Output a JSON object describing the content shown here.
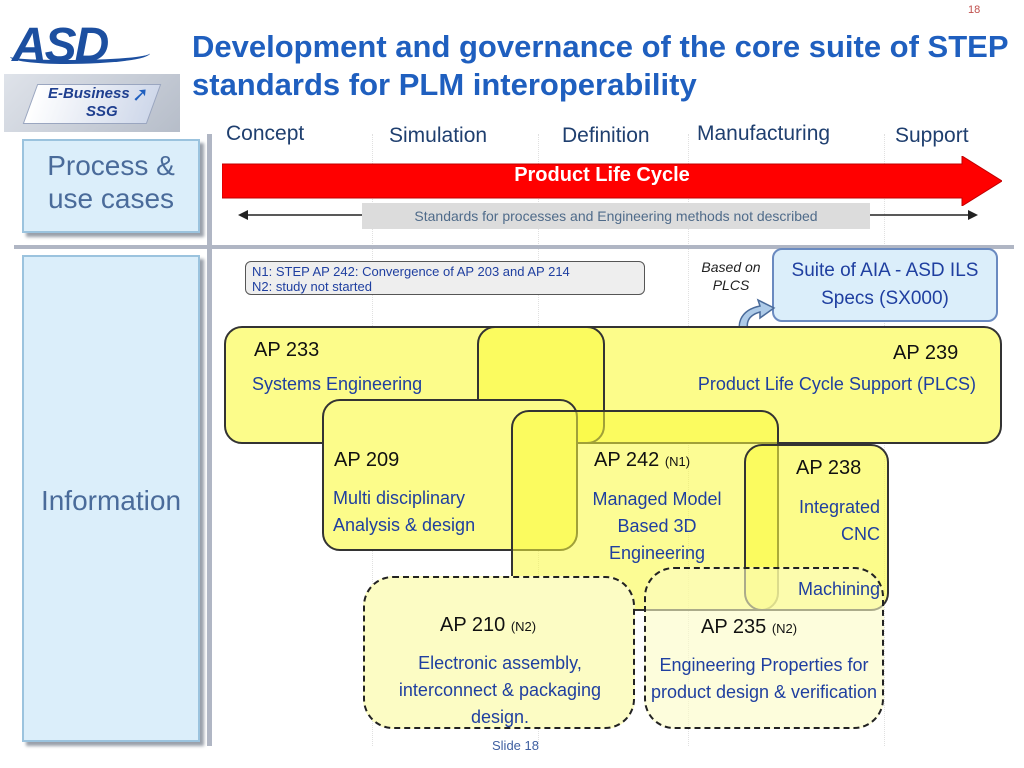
{
  "slide_number": "18",
  "title": "Development and governance of the core suite of STEP standards for PLM interoperability",
  "logo": {
    "asd": "ASD",
    "ebusiness_line1": "E-Business",
    "ebusiness_line2": "SSG"
  },
  "side_labels": {
    "process": "Process & use cases",
    "information": "Information"
  },
  "phases": [
    "Concept",
    "Simulation",
    "Definition",
    "Manufacturing",
    "Support"
  ],
  "lifecycle_label": "Product Life Cycle",
  "standards_note": "Standards for processes and Engineering methods not described",
  "notes": {
    "n1": "N1: STEP AP 242: Convergence of  AP 203 and AP 214",
    "n2": "N2: study not started"
  },
  "based_on": "Based on PLCS",
  "suite": "Suite of  AIA  - ASD ILS Specs (SX000)",
  "aps": {
    "ap233": {
      "label": "AP 233",
      "desc": "Systems Engineering"
    },
    "ap239": {
      "label": "AP 239",
      "desc": "Product Life Cycle Support (PLCS)"
    },
    "ap209": {
      "label": "AP 209",
      "desc": "Multi disciplinary Analysis & design"
    },
    "ap242": {
      "label": "AP 242",
      "note": "(N1)",
      "desc": "Managed Model Based 3D Engineering"
    },
    "ap238": {
      "label": "AP 238",
      "desc": "Integrated CNC",
      "desc2": "Machining"
    },
    "ap210": {
      "label": "AP 210",
      "note": "(N2)",
      "desc": "Electronic assembly, interconnect & packaging design."
    },
    "ap235": {
      "label": "AP 235",
      "note": "(N2)",
      "desc": "Engineering Properties for product design & verification"
    }
  },
  "footer": "Slide 18",
  "colors": {
    "title": "#1f5fbf",
    "lifecycle_arrow": "#ff0000",
    "ap_box": "#fcfc8a",
    "side_box": "#dbeefa"
  }
}
